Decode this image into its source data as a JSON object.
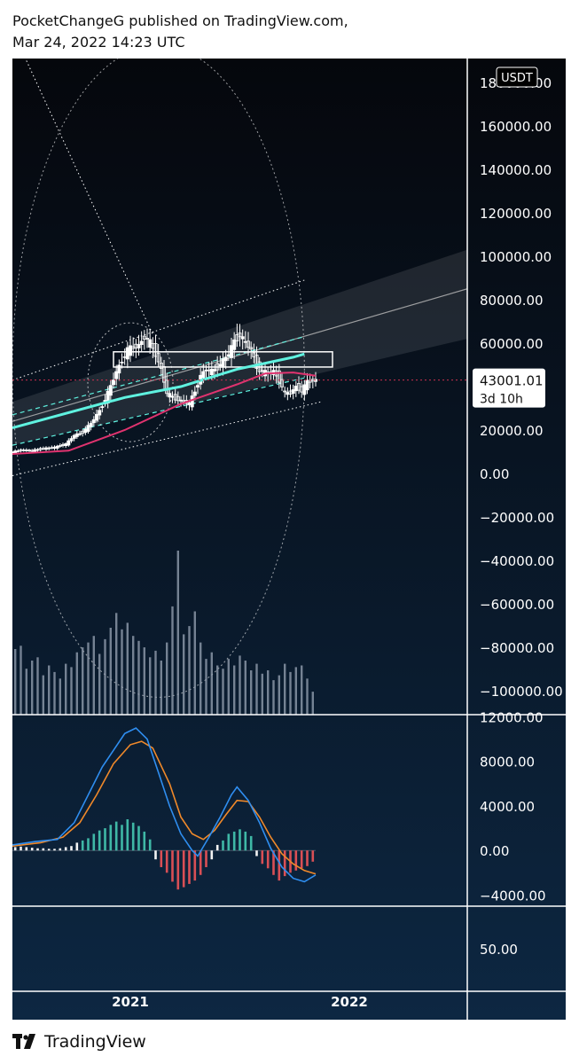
{
  "header": {
    "line1": "PocketChangeG published on TradingView.com,",
    "line2": "Mar 24, 2022 14:23 UTC"
  },
  "footer": {
    "brand": "TradingView",
    "logo_icon": "tradingview-logo-icon"
  },
  "colors": {
    "background_top": "#05070c",
    "background_bottom": "#0d2742",
    "candle": "#ffffff",
    "ma_cyan": "#5ff2e0",
    "ma_pink": "#e0336f",
    "channel_band": "#ffffff",
    "price_line": "#c9304f",
    "macd_line": "#2f8ef0",
    "signal_line": "#f0892a",
    "hist_positive": "#3fb8a6",
    "hist_negative": "#d94f55",
    "hist_pale": "#f2f2f2",
    "axis_text": "#ffffff"
  },
  "chart_data": [
    {
      "type": "candlestick",
      "currency": "USDT",
      "last_price": "43001.01",
      "countdown": "3d 10h",
      "x_labels": [
        "2021",
        "2022"
      ],
      "y_ticks": [
        "180000.00",
        "160000.00",
        "140000.00",
        "120000.00",
        "100000.00",
        "80000.00",
        "60000.00",
        "40000.00",
        "20000.00",
        "0.00",
        "−20000.00",
        "−40000.00",
        "−60000.00",
        "−80000.00",
        "−100000.00"
      ],
      "y_tick_values": [
        180000,
        160000,
        140000,
        120000,
        100000,
        80000,
        60000,
        40000,
        20000,
        0,
        -20000,
        -40000,
        -60000,
        -80000,
        -100000
      ],
      "ylim": [
        -111000,
        191000
      ],
      "x_range_weeks": [
        0,
        162
      ],
      "price_path": [
        [
          0,
          9500
        ],
        [
          4,
          10800
        ],
        [
          8,
          10500
        ],
        [
          12,
          11500
        ],
        [
          16,
          12000
        ],
        [
          20,
          13500
        ],
        [
          23,
          17500
        ],
        [
          26,
          19000
        ],
        [
          29,
          23000
        ],
        [
          32,
          29000
        ],
        [
          34,
          34000
        ],
        [
          36,
          40000
        ],
        [
          38,
          47000
        ],
        [
          40,
          52000
        ],
        [
          42,
          57000
        ],
        [
          44,
          58000
        ],
        [
          46,
          59000
        ],
        [
          48,
          63000
        ],
        [
          50,
          60000
        ],
        [
          52,
          55000
        ],
        [
          54,
          48000
        ],
        [
          56,
          37000
        ],
        [
          58,
          35000
        ],
        [
          60,
          34000
        ],
        [
          62,
          33000
        ],
        [
          64,
          32000
        ],
        [
          66,
          38000
        ],
        [
          68,
          45000
        ],
        [
          70,
          48000
        ],
        [
          72,
          47000
        ],
        [
          74,
          49000
        ],
        [
          76,
          52000
        ],
        [
          78,
          55000
        ],
        [
          80,
          61000
        ],
        [
          82,
          64000
        ],
        [
          84,
          60000
        ],
        [
          86,
          57000
        ],
        [
          88,
          49000
        ],
        [
          90,
          47000
        ],
        [
          92,
          46000
        ],
        [
          94,
          47000
        ],
        [
          96,
          43000
        ],
        [
          98,
          37000
        ],
        [
          100,
          37000
        ],
        [
          102,
          40000
        ],
        [
          104,
          38000
        ],
        [
          106,
          42000
        ],
        [
          108,
          43001
        ]
      ],
      "ma_cyan": [
        [
          0,
          21000
        ],
        [
          40,
          35000
        ],
        [
          60,
          40000
        ],
        [
          80,
          48000
        ],
        [
          100,
          53500
        ],
        [
          104,
          55000
        ]
      ],
      "ma_pink": [
        [
          0,
          9000
        ],
        [
          20,
          10500
        ],
        [
          40,
          20000
        ],
        [
          60,
          32000
        ],
        [
          80,
          41000
        ],
        [
          90,
          46000
        ],
        [
          100,
          46500
        ],
        [
          108,
          45000
        ]
      ],
      "volume": [
        [
          1,
          40
        ],
        [
          3,
          42
        ],
        [
          5,
          28
        ],
        [
          7,
          33
        ],
        [
          9,
          35
        ],
        [
          11,
          24
        ],
        [
          13,
          30
        ],
        [
          15,
          26
        ],
        [
          17,
          22
        ],
        [
          19,
          31
        ],
        [
          21,
          29
        ],
        [
          23,
          38
        ],
        [
          25,
          41
        ],
        [
          27,
          44
        ],
        [
          29,
          48
        ],
        [
          31,
          37
        ],
        [
          33,
          46
        ],
        [
          35,
          53
        ],
        [
          37,
          62
        ],
        [
          39,
          52
        ],
        [
          41,
          56
        ],
        [
          43,
          48
        ],
        [
          45,
          45
        ],
        [
          47,
          41
        ],
        [
          49,
          35
        ],
        [
          51,
          39
        ],
        [
          53,
          33
        ],
        [
          55,
          44
        ],
        [
          57,
          66
        ],
        [
          59,
          100
        ],
        [
          61,
          49
        ],
        [
          63,
          54
        ],
        [
          65,
          63
        ],
        [
          67,
          44
        ],
        [
          69,
          34
        ],
        [
          71,
          38
        ],
        [
          73,
          30
        ],
        [
          75,
          28
        ],
        [
          77,
          34
        ],
        [
          79,
          30
        ],
        [
          81,
          36
        ],
        [
          83,
          33
        ],
        [
          85,
          27
        ],
        [
          87,
          31
        ],
        [
          89,
          25
        ],
        [
          91,
          27
        ],
        [
          93,
          21
        ],
        [
          95,
          24
        ],
        [
          97,
          31
        ],
        [
          99,
          26
        ],
        [
          101,
          29
        ],
        [
          103,
          30
        ],
        [
          105,
          22
        ],
        [
          107,
          14
        ]
      ]
    },
    {
      "type": "line",
      "indicator": "MACD",
      "y_ticks": [
        "12000.00",
        "8000.00",
        "4000.00",
        "0.00",
        "−4000.00"
      ],
      "y_tick_values": [
        12000,
        8000,
        4000,
        0,
        -4000
      ],
      "ylim": [
        -5000,
        12200
      ],
      "macd_line": [
        [
          0,
          500
        ],
        [
          8,
          800
        ],
        [
          16,
          1000
        ],
        [
          22,
          2500
        ],
        [
          28,
          5500
        ],
        [
          32,
          7500
        ],
        [
          36,
          9000
        ],
        [
          40,
          10500
        ],
        [
          44,
          11000
        ],
        [
          48,
          10000
        ],
        [
          52,
          7000
        ],
        [
          56,
          4000
        ],
        [
          60,
          1500
        ],
        [
          64,
          0
        ],
        [
          66,
          -500
        ],
        [
          70,
          1200
        ],
        [
          74,
          3000
        ],
        [
          78,
          5000
        ],
        [
          80,
          5700
        ],
        [
          84,
          4500
        ],
        [
          88,
          2500
        ],
        [
          92,
          200
        ],
        [
          96,
          -1500
        ],
        [
          100,
          -2500
        ],
        [
          104,
          -2800
        ],
        [
          108,
          -2200
        ]
      ],
      "signal_line": [
        [
          0,
          400
        ],
        [
          10,
          700
        ],
        [
          18,
          1200
        ],
        [
          24,
          2500
        ],
        [
          30,
          5000
        ],
        [
          36,
          7800
        ],
        [
          42,
          9500
        ],
        [
          46,
          9800
        ],
        [
          50,
          9200
        ],
        [
          56,
          6000
        ],
        [
          60,
          3000
        ],
        [
          64,
          1500
        ],
        [
          68,
          1000
        ],
        [
          72,
          1800
        ],
        [
          76,
          3200
        ],
        [
          80,
          4500
        ],
        [
          84,
          4400
        ],
        [
          88,
          3000
        ],
        [
          92,
          1200
        ],
        [
          96,
          -300
        ],
        [
          100,
          -1200
        ],
        [
          104,
          -1800
        ],
        [
          108,
          -2100
        ]
      ],
      "histogram": [
        [
          1,
          300
        ],
        [
          3,
          350
        ],
        [
          5,
          300
        ],
        [
          7,
          250
        ],
        [
          9,
          200
        ],
        [
          11,
          200
        ],
        [
          13,
          150
        ],
        [
          15,
          150
        ],
        [
          17,
          200
        ],
        [
          19,
          300
        ],
        [
          21,
          400
        ],
        [
          23,
          700
        ],
        [
          25,
          900
        ],
        [
          27,
          1100
        ],
        [
          29,
          1500
        ],
        [
          31,
          1800
        ],
        [
          33,
          2000
        ],
        [
          35,
          2300
        ],
        [
          37,
          2600
        ],
        [
          39,
          2300
        ],
        [
          41,
          2800
        ],
        [
          43,
          2500
        ],
        [
          45,
          2200
        ],
        [
          47,
          1700
        ],
        [
          49,
          1000
        ],
        [
          51,
          -800
        ],
        [
          53,
          -1500
        ],
        [
          55,
          -2000
        ],
        [
          57,
          -2800
        ],
        [
          59,
          -3500
        ],
        [
          61,
          -3300
        ],
        [
          63,
          -3000
        ],
        [
          65,
          -2700
        ],
        [
          67,
          -2200
        ],
        [
          69,
          -1500
        ],
        [
          71,
          -800
        ],
        [
          73,
          500
        ],
        [
          75,
          900
        ],
        [
          77,
          1500
        ],
        [
          79,
          1700
        ],
        [
          81,
          1900
        ],
        [
          83,
          1700
        ],
        [
          85,
          1300
        ],
        [
          87,
          -500
        ],
        [
          89,
          -1200
        ],
        [
          91,
          -1600
        ],
        [
          93,
          -2200
        ],
        [
          95,
          -2700
        ],
        [
          97,
          -2300
        ],
        [
          99,
          -2000
        ],
        [
          101,
          -1800
        ],
        [
          103,
          -1600
        ],
        [
          105,
          -1400
        ],
        [
          107,
          -1000
        ]
      ]
    },
    {
      "type": "line",
      "indicator": "oscillator",
      "y_ticks": [
        "50.00"
      ],
      "y_tick_values": [
        50
      ],
      "ylim": [
        0,
        100
      ]
    }
  ]
}
